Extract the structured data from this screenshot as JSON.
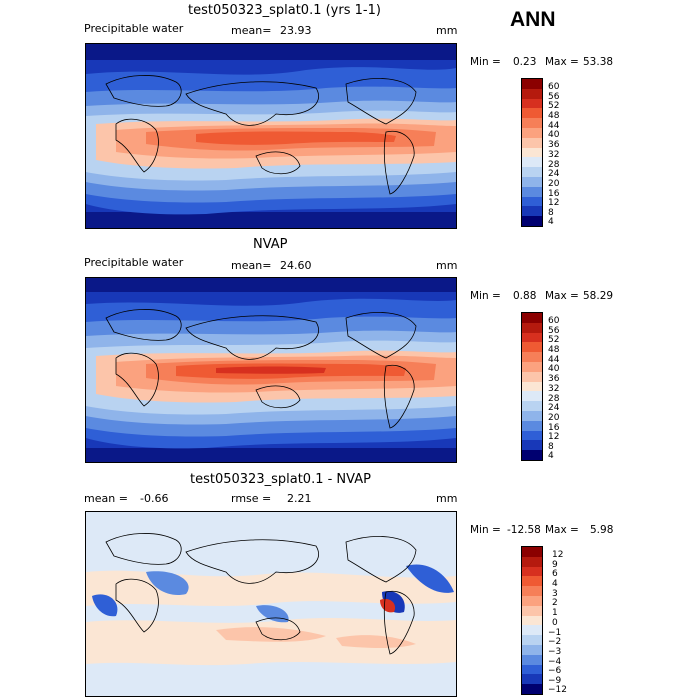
{
  "season": "ANN",
  "panels": [
    {
      "title": "test050323_splat0.1 (yrs 1-1)",
      "left_label": "Precipitable water",
      "mean_label": "mean=",
      "mean_value": "23.93",
      "units": "mm",
      "min_label": "Min =",
      "min_value": "0.23",
      "max_label": "Max =",
      "max_value": "53.38",
      "colorbar_labels": [
        "60",
        "56",
        "52",
        "48",
        "44",
        "40",
        "36",
        "32",
        "28",
        "24",
        "20",
        "16",
        "12",
        "8",
        "4"
      ],
      "colorbar_colors": [
        "#8b0000",
        "#b51a0e",
        "#d7301f",
        "#ef5a33",
        "#f67f58",
        "#fba27f",
        "#fcc5aa",
        "#fbe6d4",
        "#dde9f7",
        "#b9d3f1",
        "#8fb4ea",
        "#5b8ae0",
        "#2f5fd6",
        "#1838b8",
        "#0a1888",
        "#000070"
      ]
    },
    {
      "title": "NVAP",
      "left_label": "Precipitable water",
      "mean_label": "mean=",
      "mean_value": "24.60",
      "units": "mm",
      "min_label": "Min =",
      "min_value": "0.88",
      "max_label": "Max =",
      "max_value": "58.29",
      "colorbar_labels": [
        "60",
        "56",
        "52",
        "48",
        "44",
        "40",
        "36",
        "32",
        "28",
        "24",
        "20",
        "16",
        "12",
        "8",
        "4"
      ],
      "colorbar_colors": [
        "#8b0000",
        "#b51a0e",
        "#d7301f",
        "#ef5a33",
        "#f67f58",
        "#fba27f",
        "#fcc5aa",
        "#fbe6d4",
        "#dde9f7",
        "#b9d3f1",
        "#8fb4ea",
        "#5b8ae0",
        "#2f5fd6",
        "#1838b8",
        "#0a1888",
        "#000070"
      ]
    },
    {
      "title": "test050323_splat0.1 - NVAP",
      "left_label": "mean =",
      "left_value": "-0.66",
      "rmse_label": "rmse =",
      "rmse_value": "2.21",
      "units": "mm",
      "min_label": "Min =",
      "min_value": "-12.58",
      "max_label": "Max =",
      "max_value": "5.98",
      "colorbar_labels": [
        "12",
        "9",
        "6",
        "4",
        "3",
        "2",
        "1",
        "0",
        "−1",
        "−2",
        "−3",
        "−4",
        "−6",
        "−9",
        "−12"
      ],
      "colorbar_colors": [
        "#8b0000",
        "#b51a0e",
        "#d7301f",
        "#ef5a33",
        "#f67f58",
        "#fba27f",
        "#fcc5aa",
        "#fbe6d4",
        "#dde9f7",
        "#b9d3f1",
        "#8fb4ea",
        "#5b8ae0",
        "#2f5fd6",
        "#1838b8",
        "#0a1888",
        "#000070"
      ]
    }
  ],
  "colors": {
    "deep_blue": "#00168a",
    "mid_blue": "#2f5fd6",
    "light_blue": "#b9d3f1",
    "pale": "#fbe6d4",
    "orange": "#f67f58",
    "red": "#d7301f",
    "coast": "#000000"
  }
}
